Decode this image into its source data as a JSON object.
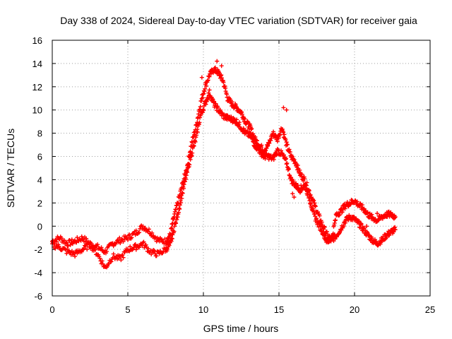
{
  "chart_data": {
    "type": "scatter",
    "title": "Day 338 of 2024, Sidereal Day-to-day VTEC variation (SDTVAR) for receiver gaia",
    "xlabel": "GPS time / hours",
    "ylabel": "SDTVAR / TECUs",
    "xlim": [
      0,
      25
    ],
    "ylim": [
      -6,
      16
    ],
    "xticks": [
      0,
      5,
      10,
      15,
      20,
      25
    ],
    "yticks": [
      -6,
      -4,
      -2,
      0,
      2,
      4,
      6,
      8,
      10,
      12,
      14,
      16
    ],
    "grid": true,
    "marker": "plus",
    "series": [
      {
        "name": "SDTVAR",
        "color": "#ff0000",
        "trace_a": [
          [
            0.0,
            -1.3
          ],
          [
            0.5,
            -1.0
          ],
          [
            1.0,
            -1.5
          ],
          [
            1.5,
            -1.3
          ],
          [
            2.0,
            -1.0
          ],
          [
            2.5,
            -1.5
          ],
          [
            3.0,
            -1.8
          ],
          [
            3.5,
            -2.2
          ],
          [
            4.0,
            -1.5
          ],
          [
            4.5,
            -1.2
          ],
          [
            5.0,
            -1.0
          ],
          [
            5.5,
            -0.6
          ],
          [
            6.0,
            0.0
          ],
          [
            6.5,
            -0.5
          ],
          [
            7.0,
            -1.2
          ],
          [
            7.5,
            -1.3
          ],
          [
            7.8,
            -0.8
          ],
          [
            8.0,
            0.5
          ],
          [
            8.3,
            2.0
          ],
          [
            8.6,
            3.5
          ],
          [
            8.9,
            5.0
          ],
          [
            9.2,
            7.0
          ],
          [
            9.5,
            8.5
          ],
          [
            9.8,
            10.5
          ],
          [
            10.1,
            12.0
          ],
          [
            10.4,
            13.0
          ],
          [
            10.7,
            13.5
          ],
          [
            11.0,
            13.2
          ],
          [
            11.3,
            12.5
          ],
          [
            11.6,
            11.0
          ],
          [
            11.9,
            10.5
          ],
          [
            12.2,
            10.2
          ],
          [
            12.5,
            9.8
          ],
          [
            12.8,
            9.0
          ],
          [
            13.1,
            8.5
          ],
          [
            13.4,
            7.5
          ],
          [
            13.7,
            7.0
          ],
          [
            14.0,
            6.5
          ],
          [
            14.3,
            7.0
          ],
          [
            14.6,
            8.0
          ],
          [
            14.9,
            7.5
          ],
          [
            15.2,
            8.5
          ],
          [
            15.5,
            7.0
          ],
          [
            15.8,
            6.0
          ],
          [
            16.1,
            5.5
          ],
          [
            16.4,
            4.5
          ],
          [
            16.7,
            4.0
          ],
          [
            17.0,
            3.0
          ],
          [
            17.3,
            2.0
          ],
          [
            17.6,
            1.0
          ],
          [
            17.9,
            0.0
          ],
          [
            18.2,
            -0.8
          ],
          [
            18.5,
            -1.2
          ],
          [
            18.8,
            -0.8
          ],
          [
            19.1,
            -0.2
          ],
          [
            19.4,
            0.5
          ],
          [
            19.7,
            0.8
          ],
          [
            20.0,
            0.6
          ],
          [
            20.3,
            0.2
          ],
          [
            20.6,
            -0.3
          ],
          [
            20.9,
            -0.8
          ],
          [
            21.2,
            -1.2
          ],
          [
            21.5,
            -1.5
          ],
          [
            21.8,
            -1.2
          ],
          [
            22.1,
            -0.8
          ],
          [
            22.4,
            -0.5
          ],
          [
            22.7,
            -0.3
          ]
        ],
        "trace_b": [
          [
            0.0,
            -1.6
          ],
          [
            0.5,
            -1.8
          ],
          [
            1.0,
            -2.2
          ],
          [
            1.5,
            -2.4
          ],
          [
            2.0,
            -2.0
          ],
          [
            2.5,
            -1.6
          ],
          [
            3.0,
            -2.4
          ],
          [
            3.5,
            -3.6
          ],
          [
            4.0,
            -2.6
          ],
          [
            4.5,
            -2.8
          ],
          [
            5.0,
            -2.0
          ],
          [
            5.5,
            -1.8
          ],
          [
            6.0,
            -1.5
          ],
          [
            6.5,
            -2.2
          ],
          [
            7.0,
            -2.4
          ],
          [
            7.5,
            -2.0
          ],
          [
            7.8,
            -1.6
          ],
          [
            8.0,
            -0.5
          ],
          [
            8.3,
            1.0
          ],
          [
            8.6,
            2.8
          ],
          [
            8.9,
            4.5
          ],
          [
            9.2,
            6.2
          ],
          [
            9.5,
            7.5
          ],
          [
            9.8,
            9.5
          ],
          [
            10.1,
            10.5
          ],
          [
            10.4,
            11.5
          ],
          [
            10.7,
            10.5
          ],
          [
            11.0,
            10.0
          ],
          [
            11.3,
            9.5
          ],
          [
            11.6,
            9.3
          ],
          [
            11.9,
            9.2
          ],
          [
            12.2,
            9.0
          ],
          [
            12.5,
            8.5
          ],
          [
            12.8,
            8.0
          ],
          [
            13.1,
            7.8
          ],
          [
            13.4,
            7.0
          ],
          [
            13.7,
            6.5
          ],
          [
            14.0,
            6.0
          ],
          [
            14.3,
            6.0
          ],
          [
            14.6,
            5.8
          ],
          [
            14.9,
            6.5
          ],
          [
            15.2,
            6.2
          ],
          [
            15.5,
            5.5
          ],
          [
            15.8,
            4.0
          ],
          [
            16.1,
            3.5
          ],
          [
            16.4,
            3.2
          ],
          [
            16.7,
            3.5
          ],
          [
            17.0,
            2.5
          ],
          [
            17.3,
            1.0
          ],
          [
            17.6,
            0.2
          ],
          [
            17.9,
            -0.5
          ],
          [
            18.2,
            -1.4
          ],
          [
            18.5,
            -1.0
          ],
          [
            18.8,
            1.0
          ],
          [
            19.1,
            1.3
          ],
          [
            19.4,
            1.8
          ],
          [
            19.7,
            2.0
          ],
          [
            20.0,
            2.2
          ],
          [
            20.3,
            1.8
          ],
          [
            20.6,
            1.5
          ],
          [
            20.9,
            1.0
          ],
          [
            21.2,
            0.7
          ],
          [
            21.5,
            0.5
          ],
          [
            21.8,
            0.8
          ],
          [
            22.1,
            1.0
          ],
          [
            22.4,
            1.0
          ],
          [
            22.7,
            0.8
          ]
        ],
        "outliers": [
          [
            15.3,
            10.2
          ],
          [
            15.5,
            10.0
          ],
          [
            16.0,
            2.5
          ],
          [
            15.9,
            2.8
          ],
          [
            9.9,
            12.8
          ],
          [
            10.9,
            14.2
          ],
          [
            11.2,
            13.8
          ],
          [
            16.4,
            2.9
          ],
          [
            20.8,
            0.0
          ],
          [
            21.5,
            1.1
          ]
        ]
      }
    ]
  }
}
